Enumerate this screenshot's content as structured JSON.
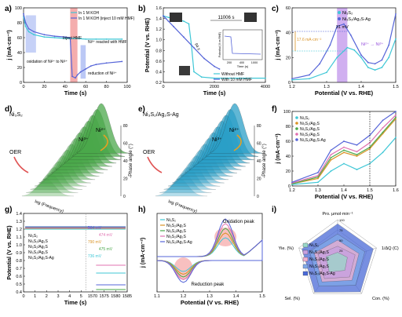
{
  "figure": {
    "panel_labels": [
      "a)",
      "b)",
      "c)",
      "d)",
      "e)",
      "f)",
      "g)",
      "h)",
      "i)"
    ]
  },
  "colors": {
    "cyan": "#3fc7d6",
    "blue": "#5564d8",
    "green": "#4aa84a",
    "orange": "#d99326",
    "pink": "#e070b0",
    "purple": "#9955dd",
    "red_band": "#f08a8a",
    "blue_band": "#8da3ef",
    "violet_band": "#b07ae6"
  },
  "chart_data": [
    {
      "panel": "a",
      "type": "line",
      "xlabel": "Time (s)",
      "ylabel": "j (mA·cm⁻²)",
      "xlim": [
        0,
        100
      ],
      "ylim": [
        0,
        100
      ],
      "xticks": [
        "0",
        "20",
        "40",
        "60",
        "80",
        "100"
      ],
      "yticks": [
        "0",
        "20",
        "40",
        "60",
        "80",
        "100"
      ],
      "legend": [
        "In 1 M KOH",
        "In 1 M KOH (inject 10 mM HMF)"
      ],
      "annotations": [
        "Inject HMF",
        "Ni³⁺ reacted with HMF",
        "oxidation of Ni²⁺ to Ni³⁺",
        "reduction of Ni³⁺"
      ],
      "series": [
        {
          "name": "In 1 M KOH",
          "x": [
            0,
            2,
            5,
            10,
            20,
            30,
            40,
            45,
            48,
            50,
            60,
            70,
            80,
            95
          ],
          "y": [
            88,
            75,
            68,
            64,
            61,
            60,
            59,
            59,
            59,
            59,
            58,
            58,
            58,
            58
          ]
        },
        {
          "name": "In 1 M KOH (inject 10 mM HMF)",
          "x": [
            0,
            2,
            5,
            10,
            20,
            30,
            40,
            45,
            47,
            50,
            52,
            55,
            60,
            65,
            70,
            80,
            95
          ],
          "y": [
            92,
            80,
            72,
            68,
            64,
            62,
            61,
            60,
            8,
            6,
            10,
            14,
            18,
            22,
            24,
            26,
            28
          ]
        }
      ]
    },
    {
      "panel": "b",
      "type": "line",
      "xlabel": "Time (s)",
      "ylabel": "Potential (V vs. RHE)",
      "xlim": [
        0,
        4000
      ],
      "ylim": [
        0.2,
        1.6
      ],
      "xticks": [
        "0",
        "2000",
        "4000"
      ],
      "yticks": [
        "0.2",
        "0.4",
        "0.6",
        "0.8",
        "1.0",
        "1.2",
        "1.4",
        "1.6"
      ],
      "annotations": [
        "11006 s",
        "94 s"
      ],
      "legend": [
        "Without HMF",
        "With 10 mM HMF"
      ],
      "inset": {
        "xlabel": "Time (s)",
        "ylabel": "Potential (V vs RHE)",
        "xticks": [
          "200",
          "400",
          "1000"
        ]
      },
      "series": [
        {
          "name": "Without HMF",
          "x": [
            0,
            200,
            400,
            600,
            800,
            1000,
            1100,
            1200,
            1500,
            2000,
            3000,
            4000
          ],
          "y": [
            1.45,
            1.42,
            1.4,
            1.38,
            1.35,
            1.3,
            0.9,
            0.4,
            0.3,
            0.28,
            0.28,
            0.28
          ]
        },
        {
          "name": "With 10 mM HMF",
          "x": [
            0,
            100,
            200,
            400,
            800,
            1200,
            1600,
            2000,
            2200
          ],
          "y": [
            1.45,
            1.4,
            1.35,
            1.25,
            1.05,
            0.85,
            0.65,
            0.5,
            0.45
          ]
        }
      ]
    },
    {
      "panel": "c",
      "type": "line",
      "xlabel": "Potential (V vs. RHE)",
      "ylabel": "j (mA·cm⁻²)",
      "xlim": [
        1.2,
        1.5
      ],
      "ylim": [
        0,
        60
      ],
      "xticks": [
        "1.2",
        "1.3",
        "1.4",
        "1.5"
      ],
      "yticks": [
        "0",
        "20",
        "40",
        "60"
      ],
      "legend": [
        "Ni₃S₂",
        "Ni₃S₂/Ag₂S-Ag"
      ],
      "annotations": [
        "31 mV",
        "17.6 mA·cm⁻²",
        "Ni²⁺ → Ni³⁺"
      ],
      "series": [
        {
          "name": "Ni₃S₂",
          "x": [
            1.2,
            1.25,
            1.3,
            1.33,
            1.36,
            1.38,
            1.4,
            1.42,
            1.44,
            1.46,
            1.48,
            1.5
          ],
          "y": [
            2,
            3,
            8,
            20,
            28,
            26,
            20,
            12,
            10,
            12,
            20,
            35
          ]
        },
        {
          "name": "Ni₃S₂/Ag₂S-Ag",
          "x": [
            1.2,
            1.25,
            1.28,
            1.31,
            1.33,
            1.35,
            1.37,
            1.4,
            1.42,
            1.44,
            1.46,
            1.48,
            1.5
          ],
          "y": [
            3,
            6,
            15,
            30,
            45,
            47,
            38,
            22,
            16,
            15,
            18,
            30,
            55
          ]
        }
      ]
    },
    {
      "panel": "d",
      "type": "area",
      "title": "Ni₃S₂",
      "zlabel": "-Phase angle (°)",
      "zticks": [
        "0",
        "20",
        "40",
        "60",
        "80"
      ],
      "xlabel": "log (Frequency)",
      "annotations": [
        "OER",
        "Ni²⁺",
        "Ni³⁺"
      ]
    },
    {
      "panel": "e",
      "type": "area",
      "title": "Ni₃S₂/Ag₂S-Ag",
      "zlabel": "-Phase angle (°)",
      "zticks": [
        "0",
        "20",
        "40",
        "60",
        "80"
      ],
      "xlabel": "log (Frequency)",
      "annotations": [
        "OER",
        "Ni²⁺",
        "Ni³⁺"
      ]
    },
    {
      "panel": "f",
      "type": "line",
      "xlabel": "Potential (V vs. RHE)",
      "ylabel": "j (mA·cm⁻²)",
      "xlim": [
        1.2,
        1.6
      ],
      "ylim": [
        0,
        100
      ],
      "xticks": [
        "1.2",
        "1.3",
        "1.4",
        "1.5",
        "1.6"
      ],
      "yticks": [
        "0",
        "20",
        "40",
        "60",
        "80",
        "100"
      ],
      "legend": [
        "Ni₃S₂",
        "Ni₃S₂/Ag₂S",
        "Ni₃S₂/Ag₂S",
        "Ni₃S₂/Ag₂S",
        "Ni₃S₂/Ag₂S-Ag"
      ],
      "series": [
        {
          "name": "Ni₃S₂",
          "x": [
            1.2,
            1.3,
            1.35,
            1.4,
            1.45,
            1.5,
            1.55,
            1.6
          ],
          "y": [
            2,
            5,
            20,
            30,
            22,
            30,
            45,
            65
          ]
        },
        {
          "name": "Ni₃S₂/Ag₂S",
          "x": [
            1.2,
            1.3,
            1.35,
            1.4,
            1.45,
            1.5,
            1.55,
            1.6
          ],
          "y": [
            3,
            10,
            35,
            45,
            40,
            50,
            70,
            90
          ]
        },
        {
          "name": "Ni₃S₂/Ag₂S",
          "x": [
            1.2,
            1.3,
            1.35,
            1.4,
            1.45,
            1.5,
            1.55,
            1.6
          ],
          "y": [
            3,
            12,
            38,
            48,
            42,
            52,
            72,
            92
          ]
        },
        {
          "name": "Ni₃S₂/Ag₂S",
          "x": [
            1.2,
            1.3,
            1.35,
            1.4,
            1.45,
            1.5,
            1.55,
            1.6
          ],
          "y": [
            4,
            14,
            42,
            52,
            46,
            58,
            78,
            95
          ]
        },
        {
          "name": "Ni₃S₂/Ag₂S-Ag",
          "x": [
            1.2,
            1.3,
            1.35,
            1.4,
            1.45,
            1.5,
            1.55,
            1.6
          ],
          "y": [
            5,
            18,
            48,
            60,
            55,
            68,
            88,
            100
          ]
        }
      ]
    },
    {
      "panel": "g",
      "type": "line",
      "xlabel": "Time (s)",
      "ylabel": "Potential (V vs. RHE)",
      "ylim": [
        0.4,
        1.4
      ],
      "yticks": [
        "0.4",
        "0.5",
        "0.6",
        "0.7",
        "0.8",
        "0.9",
        "1.0",
        "1.1",
        "1.2",
        "1.3",
        "1.4"
      ],
      "xticks": [
        "0",
        "1",
        "2",
        "3",
        "4",
        "5",
        "1570",
        "1575",
        "1580",
        "1585"
      ],
      "legend": [
        "Ni₃S₂",
        "Ni₃S₂/Ag₂S",
        "Ni₃S₂/Ag₂S",
        "Ni₃S₂/Ag₂S",
        "Ni₃S₂/Ag₂S-Ag"
      ],
      "annotations": [
        "564 mV",
        "474 mV",
        "790 mV",
        "475 mV",
        "736 mV"
      ]
    },
    {
      "panel": "h",
      "type": "line",
      "xlabel": "Potential (V vs. RHE)",
      "ylabel": "j (mA·cm⁻²)",
      "xlim": [
        1.1,
        1.5
      ],
      "xticks": [
        "1.1",
        "1.2",
        "1.3",
        "1.4",
        "1.5"
      ],
      "legend": [
        "Ni₃S₂",
        "Ni₃S₂/Ag₂S",
        "Ni₃S₂/Ag₂S",
        "Ni₃S₂/Ag₂S",
        "Ni₃S₂/Ag₂S-Ag"
      ],
      "annotations": [
        "Oxidation peak",
        "Reduction peak"
      ]
    },
    {
      "panel": "i",
      "type": "radar",
      "axes": [
        "Pro. μmol·min⁻¹",
        "1/ΔQ (C)",
        "Con. (%)",
        "Sel. (%)",
        "Yie. (%)"
      ],
      "ticks": [
        "25",
        "50",
        "75",
        "100"
      ],
      "legend": [
        "Ni₃S₂",
        "Ni₃S₂/Ag₂S",
        "Ni₃S₂/Ag₂S",
        "Ni₃S₂/Ag₂S",
        "Ni₃S₂/Ag₂S-Ag"
      ],
      "series": [
        {
          "name": "Ni₃S₂",
          "values": [
            20,
            25,
            30,
            35,
            30
          ]
        },
        {
          "name": "Ni₃S₂/Ag₂S",
          "values": [
            35,
            45,
            50,
            55,
            50
          ]
        },
        {
          "name": "Ni₃S₂/Ag₂S",
          "values": [
            50,
            55,
            60,
            65,
            60
          ]
        },
        {
          "name": "Ni₃S₂/Ag₂S",
          "values": [
            65,
            70,
            75,
            78,
            72
          ]
        },
        {
          "name": "Ni₃S₂/Ag₂S-Ag",
          "values": [
            90,
            92,
            95,
            96,
            92
          ]
        }
      ]
    }
  ]
}
